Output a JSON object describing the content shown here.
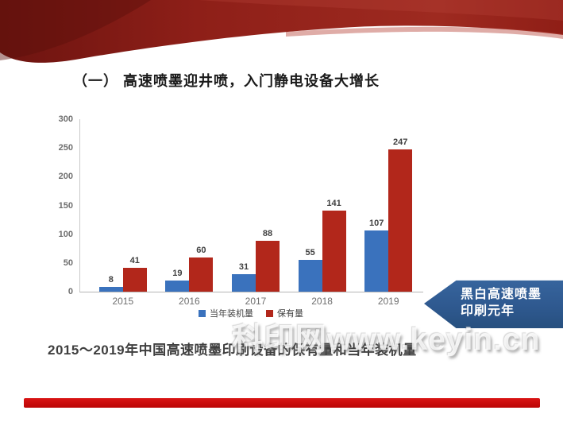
{
  "slide": {
    "title": "（一） 高速喷墨迎井喷，入门静电设备大增长",
    "caption": "2015～2019年中国高速喷墨印刷设备的保有量和当年装机量",
    "watermark": "科印网www.keyin.cn",
    "callout": {
      "line1": "黑白高速喷墨",
      "line2": "印刷元年"
    }
  },
  "chart_data": {
    "type": "bar",
    "title": "",
    "xlabel": "",
    "ylabel": "",
    "categories": [
      "2015",
      "2016",
      "2017",
      "2018",
      "2019"
    ],
    "series": [
      {
        "name": "当年装机量",
        "color": "#3a72bd",
        "values": [
          8,
          19,
          31,
          55,
          107
        ]
      },
      {
        "name": "保有量",
        "color": "#b2271b",
        "values": [
          41,
          60,
          88,
          141,
          247
        ]
      }
    ],
    "ylim": [
      0,
      300
    ],
    "ytick_step": 50,
    "grid": false,
    "legend_position": "bottom",
    "value_labels": true
  },
  "colors": {
    "header_red_dark": "#6d1410",
    "header_red_main": "#8e1f18",
    "header_red_light": "#b24038",
    "callout_blue": "#2e588e",
    "bottom_bar_red": "#c00b0b",
    "axis_gray": "#b5b5b5",
    "tick_text_gray": "#6e6e6e"
  }
}
